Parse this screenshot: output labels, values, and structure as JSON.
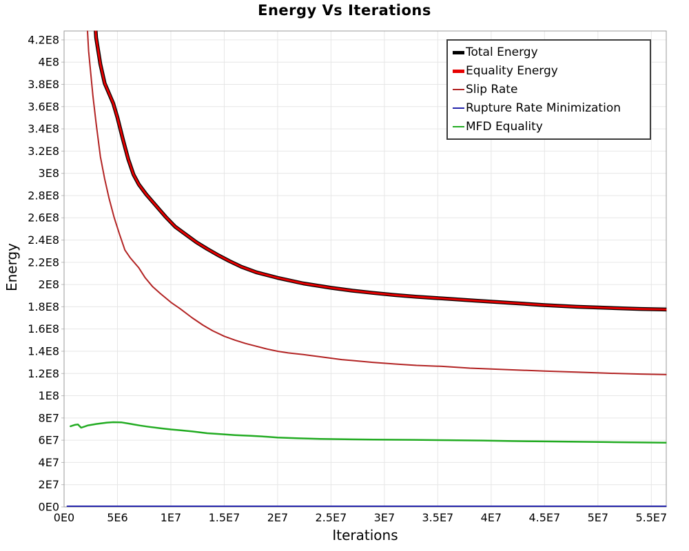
{
  "chart_data": {
    "type": "line",
    "title": "Energy Vs Iterations",
    "xlabel": "Iterations",
    "ylabel": "Energy",
    "xlim": [
      0,
      56400000.0
    ],
    "ylim": [
      0,
      428000000.0
    ],
    "grid": true,
    "legend_position": "top-right",
    "colors": {
      "grid": "#e6e6e6",
      "plot_border": "#999999",
      "legend_border": "#3a3a3a",
      "background": "#ffffff",
      "text": "#000000"
    },
    "x_ticks": [
      {
        "v": 0,
        "label": "0E0"
      },
      {
        "v": 5000000.0,
        "label": "5E6"
      },
      {
        "v": 10000000.0,
        "label": "1E7"
      },
      {
        "v": 15000000.0,
        "label": "1.5E7"
      },
      {
        "v": 20000000.0,
        "label": "2E7"
      },
      {
        "v": 25000000.0,
        "label": "2.5E7"
      },
      {
        "v": 30000000.0,
        "label": "3E7"
      },
      {
        "v": 35000000.0,
        "label": "3.5E7"
      },
      {
        "v": 40000000.0,
        "label": "4E7"
      },
      {
        "v": 45000000.0,
        "label": "4.5E7"
      },
      {
        "v": 50000000.0,
        "label": "5E7"
      },
      {
        "v": 55000000.0,
        "label": "5.5E7"
      }
    ],
    "y_ticks": [
      {
        "v": 0,
        "label": "0E0"
      },
      {
        "v": 20000000.0,
        "label": "2E7"
      },
      {
        "v": 40000000.0,
        "label": "4E7"
      },
      {
        "v": 60000000.0,
        "label": "6E7"
      },
      {
        "v": 80000000.0,
        "label": "8E7"
      },
      {
        "v": 100000000.0,
        "label": "1E8"
      },
      {
        "v": 120000000.0,
        "label": "1.2E8"
      },
      {
        "v": 140000000.0,
        "label": "1.4E8"
      },
      {
        "v": 160000000.0,
        "label": "1.6E8"
      },
      {
        "v": 180000000.0,
        "label": "1.8E8"
      },
      {
        "v": 200000000.0,
        "label": "2E8"
      },
      {
        "v": 220000000.0,
        "label": "2.2E8"
      },
      {
        "v": 240000000.0,
        "label": "2.4E8"
      },
      {
        "v": 260000000.0,
        "label": "2.6E8"
      },
      {
        "v": 280000000.0,
        "label": "2.8E8"
      },
      {
        "v": 300000000.0,
        "label": "3E8"
      },
      {
        "v": 320000000.0,
        "label": "3.2E8"
      },
      {
        "v": 340000000.0,
        "label": "3.4E8"
      },
      {
        "v": 360000000.0,
        "label": "3.6E8"
      },
      {
        "v": 380000000.0,
        "label": "3.8E8"
      },
      {
        "v": 400000000.0,
        "label": "4E8"
      },
      {
        "v": 420000000.0,
        "label": "4.2E8"
      }
    ],
    "series": [
      {
        "name": "Total Energy",
        "color": "#000000",
        "line_width": 5.5,
        "legend_swatch_thickness": 5,
        "points": [
          [
            2600000.0,
            480000000.0
          ],
          [
            3000000.0,
            422000000.0
          ],
          [
            3400000.0,
            398000000.0
          ],
          [
            3800000.0,
            381000000.0
          ],
          [
            4200000.0,
            372000000.0
          ],
          [
            4600000.0,
            363000000.0
          ],
          [
            5000000.0,
            350000000.0
          ],
          [
            5500000.0,
            331000000.0
          ],
          [
            6000000.0,
            313000000.0
          ],
          [
            6500000.0,
            299000000.0
          ],
          [
            7000000.0,
            290000000.0
          ],
          [
            7700000.0,
            281000000.0
          ],
          [
            8600000.0,
            271000000.0
          ],
          [
            9500000.0,
            261000000.0
          ],
          [
            10400000.0,
            252000000.0
          ],
          [
            11400000.0,
            245000000.0
          ],
          [
            12400000.0,
            238000000.0
          ],
          [
            13400000.0,
            232000000.0
          ],
          [
            14500000.0,
            226000000.0
          ],
          [
            15500000.0,
            221000000.0
          ],
          [
            16600000.0,
            216000000.0
          ],
          [
            18000000.0,
            211000000.0
          ],
          [
            20000000.0,
            206000000.0
          ],
          [
            22400000.0,
            201000000.0
          ],
          [
            25000000.0,
            197000000.0
          ],
          [
            27000000.0,
            194500000.0
          ],
          [
            28900000.0,
            192500000.0
          ],
          [
            31000000.0,
            190500000.0
          ],
          [
            33000000.0,
            189000000.0
          ],
          [
            35400000.0,
            187500000.0
          ],
          [
            38500000.0,
            185500000.0
          ],
          [
            41800000.0,
            183500000.0
          ],
          [
            45000000.0,
            181500000.0
          ],
          [
            48000000.0,
            180000000.0
          ],
          [
            51000000.0,
            179000000.0
          ],
          [
            54000000.0,
            178000000.0
          ],
          [
            56400000.0,
            177500000.0
          ]
        ]
      },
      {
        "name": "Equality Energy",
        "color": "#e60000",
        "line_width": 3,
        "legend_swatch_thickness": 5,
        "points": [
          [
            2600000.0,
            480000000.0
          ],
          [
            3000000.0,
            422000000.0
          ],
          [
            3400000.0,
            398000000.0
          ],
          [
            3800000.0,
            381000000.0
          ],
          [
            4200000.0,
            372000000.0
          ],
          [
            4600000.0,
            363000000.0
          ],
          [
            5000000.0,
            350000000.0
          ],
          [
            5500000.0,
            331000000.0
          ],
          [
            6000000.0,
            313000000.0
          ],
          [
            6500000.0,
            299000000.0
          ],
          [
            7000000.0,
            290000000.0
          ],
          [
            7700000.0,
            281000000.0
          ],
          [
            8600000.0,
            271000000.0
          ],
          [
            9500000.0,
            261000000.0
          ],
          [
            10400000.0,
            252000000.0
          ],
          [
            11400000.0,
            245000000.0
          ],
          [
            12400000.0,
            238000000.0
          ],
          [
            13400000.0,
            232000000.0
          ],
          [
            14500000.0,
            226000000.0
          ],
          [
            15500000.0,
            221000000.0
          ],
          [
            16600000.0,
            216000000.0
          ],
          [
            18000000.0,
            211000000.0
          ],
          [
            20000000.0,
            206000000.0
          ],
          [
            22400000.0,
            201000000.0
          ],
          [
            25000000.0,
            197000000.0
          ],
          [
            27000000.0,
            194500000.0
          ],
          [
            28900000.0,
            192500000.0
          ],
          [
            31000000.0,
            190500000.0
          ],
          [
            33000000.0,
            189000000.0
          ],
          [
            35400000.0,
            187500000.0
          ],
          [
            38500000.0,
            185500000.0
          ],
          [
            41800000.0,
            183500000.0
          ],
          [
            45000000.0,
            181500000.0
          ],
          [
            48000000.0,
            180000000.0
          ],
          [
            51000000.0,
            179000000.0
          ],
          [
            54000000.0,
            178000000.0
          ],
          [
            56400000.0,
            177500000.0
          ]
        ]
      },
      {
        "name": "Slip Rate",
        "color": "#b22222",
        "line_width": 2,
        "legend_swatch_thickness": 2.5,
        "points": [
          [
            1900000.0,
            480000000.0
          ],
          [
            2300000.0,
            410000000.0
          ],
          [
            2700000.0,
            370000000.0
          ],
          [
            3000000.0,
            345000000.0
          ],
          [
            3400000.0,
            315000000.0
          ],
          [
            3800000.0,
            295000000.0
          ],
          [
            4200000.0,
            278000000.0
          ],
          [
            4700000.0,
            260000000.0
          ],
          [
            5200000.0,
            245000000.0
          ],
          [
            5700000.0,
            231000000.0
          ],
          [
            6200000.0,
            224000000.0
          ],
          [
            7000000.0,
            215000000.0
          ],
          [
            7600000.0,
            206000000.0
          ],
          [
            8300000.0,
            198000000.0
          ],
          [
            9000000.0,
            192000000.0
          ],
          [
            10000000.0,
            184000000.0
          ],
          [
            10900000.0,
            178000000.0
          ],
          [
            12000000.0,
            170000000.0
          ],
          [
            13000000.0,
            163500000.0
          ],
          [
            13900000.0,
            158500000.0
          ],
          [
            15000000.0,
            153500000.0
          ],
          [
            16000000.0,
            150000000.0
          ],
          [
            17000000.0,
            147000000.0
          ],
          [
            18000000.0,
            144500000.0
          ],
          [
            19000000.0,
            142000000.0
          ],
          [
            20000000.0,
            140000000.0
          ],
          [
            21000000.0,
            138500000.0
          ],
          [
            22400000.0,
            137000000.0
          ],
          [
            24000000.0,
            135000000.0
          ],
          [
            26000000.0,
            132500000.0
          ],
          [
            28900000.0,
            130000000.0
          ],
          [
            31000000.0,
            128500000.0
          ],
          [
            33000000.0,
            127300000.0
          ],
          [
            35400000.0,
            126400000.0
          ],
          [
            38000000.0,
            124800000.0
          ],
          [
            41800000.0,
            123300000.0
          ],
          [
            45000000.0,
            122200000.0
          ],
          [
            48000000.0,
            121200000.0
          ],
          [
            51000000.0,
            120200000.0
          ],
          [
            54000000.0,
            119500000.0
          ],
          [
            56400000.0,
            119000000.0
          ]
        ]
      },
      {
        "name": "Rupture Rate Minimization",
        "color": "#2222aa",
        "line_width": 2,
        "legend_swatch_thickness": 2.5,
        "points": [
          [
            300000.0,
            600000.0
          ],
          [
            56400000.0,
            600000.0
          ]
        ]
      },
      {
        "name": "MFD Equality",
        "color": "#21ab21",
        "line_width": 2.5,
        "legend_swatch_thickness": 2.5,
        "points": [
          [
            600000.0,
            72500000.0
          ],
          [
            1000000.0,
            73800000.0
          ],
          [
            1300000.0,
            74200000.0
          ],
          [
            1600000.0,
            71200000.0
          ],
          [
            2200000.0,
            73200000.0
          ],
          [
            3000000.0,
            74600000.0
          ],
          [
            4000000.0,
            75800000.0
          ],
          [
            4600000.0,
            76200000.0
          ],
          [
            5400000.0,
            76000000.0
          ],
          [
            6300000.0,
            74600000.0
          ],
          [
            7100000.0,
            73200000.0
          ],
          [
            8000000.0,
            72000000.0
          ],
          [
            9000000.0,
            70800000.0
          ],
          [
            10000000.0,
            69700000.0
          ],
          [
            11000000.0,
            68800000.0
          ],
          [
            12000000.0,
            67900000.0
          ],
          [
            13400000.0,
            66300000.0
          ],
          [
            14500000.0,
            65600000.0
          ],
          [
            16000000.0,
            64600000.0
          ],
          [
            17500000.0,
            63900000.0
          ],
          [
            19000000.0,
            63100000.0
          ],
          [
            20000000.0,
            62400000.0
          ],
          [
            22000000.0,
            61700000.0
          ],
          [
            24000000.0,
            61200000.0
          ],
          [
            26300000.0,
            60800000.0
          ],
          [
            29000000.0,
            60500000.0
          ],
          [
            32800000.0,
            60300000.0
          ],
          [
            36000000.0,
            60000000.0
          ],
          [
            39200000.0,
            59700000.0
          ],
          [
            42000000.0,
            59200000.0
          ],
          [
            45000000.0,
            58900000.0
          ],
          [
            48000000.0,
            58600000.0
          ],
          [
            51000000.0,
            58300000.0
          ],
          [
            54000000.0,
            58000000.0
          ],
          [
            56400000.0,
            57800000.0
          ]
        ]
      }
    ]
  }
}
